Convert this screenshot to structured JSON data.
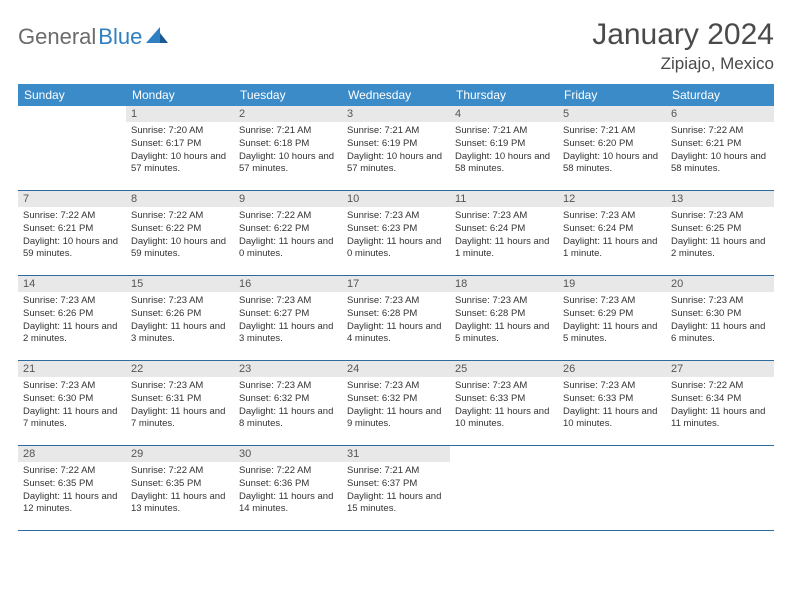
{
  "brand": {
    "general": "General",
    "blue": "Blue"
  },
  "title": "January 2024",
  "location": "Zipiajo, Mexico",
  "colors": {
    "header_bg": "#3b8bc9",
    "header_text": "#ffffff",
    "daynum_bg": "#e8e8e8",
    "week_border": "#2f6a9e",
    "title_color": "#4a4a4a",
    "logo_gray": "#6b6b6b",
    "logo_blue": "#2f7fc2"
  },
  "weekdays": [
    "Sunday",
    "Monday",
    "Tuesday",
    "Wednesday",
    "Thursday",
    "Friday",
    "Saturday"
  ],
  "weeks": [
    [
      {
        "day": "",
        "sunrise": "",
        "sunset": "",
        "daylight": ""
      },
      {
        "day": "1",
        "sunrise": "Sunrise: 7:20 AM",
        "sunset": "Sunset: 6:17 PM",
        "daylight": "Daylight: 10 hours and 57 minutes."
      },
      {
        "day": "2",
        "sunrise": "Sunrise: 7:21 AM",
        "sunset": "Sunset: 6:18 PM",
        "daylight": "Daylight: 10 hours and 57 minutes."
      },
      {
        "day": "3",
        "sunrise": "Sunrise: 7:21 AM",
        "sunset": "Sunset: 6:19 PM",
        "daylight": "Daylight: 10 hours and 57 minutes."
      },
      {
        "day": "4",
        "sunrise": "Sunrise: 7:21 AM",
        "sunset": "Sunset: 6:19 PM",
        "daylight": "Daylight: 10 hours and 58 minutes."
      },
      {
        "day": "5",
        "sunrise": "Sunrise: 7:21 AM",
        "sunset": "Sunset: 6:20 PM",
        "daylight": "Daylight: 10 hours and 58 minutes."
      },
      {
        "day": "6",
        "sunrise": "Sunrise: 7:22 AM",
        "sunset": "Sunset: 6:21 PM",
        "daylight": "Daylight: 10 hours and 58 minutes."
      }
    ],
    [
      {
        "day": "7",
        "sunrise": "Sunrise: 7:22 AM",
        "sunset": "Sunset: 6:21 PM",
        "daylight": "Daylight: 10 hours and 59 minutes."
      },
      {
        "day": "8",
        "sunrise": "Sunrise: 7:22 AM",
        "sunset": "Sunset: 6:22 PM",
        "daylight": "Daylight: 10 hours and 59 minutes."
      },
      {
        "day": "9",
        "sunrise": "Sunrise: 7:22 AM",
        "sunset": "Sunset: 6:22 PM",
        "daylight": "Daylight: 11 hours and 0 minutes."
      },
      {
        "day": "10",
        "sunrise": "Sunrise: 7:23 AM",
        "sunset": "Sunset: 6:23 PM",
        "daylight": "Daylight: 11 hours and 0 minutes."
      },
      {
        "day": "11",
        "sunrise": "Sunrise: 7:23 AM",
        "sunset": "Sunset: 6:24 PM",
        "daylight": "Daylight: 11 hours and 1 minute."
      },
      {
        "day": "12",
        "sunrise": "Sunrise: 7:23 AM",
        "sunset": "Sunset: 6:24 PM",
        "daylight": "Daylight: 11 hours and 1 minute."
      },
      {
        "day": "13",
        "sunrise": "Sunrise: 7:23 AM",
        "sunset": "Sunset: 6:25 PM",
        "daylight": "Daylight: 11 hours and 2 minutes."
      }
    ],
    [
      {
        "day": "14",
        "sunrise": "Sunrise: 7:23 AM",
        "sunset": "Sunset: 6:26 PM",
        "daylight": "Daylight: 11 hours and 2 minutes."
      },
      {
        "day": "15",
        "sunrise": "Sunrise: 7:23 AM",
        "sunset": "Sunset: 6:26 PM",
        "daylight": "Daylight: 11 hours and 3 minutes."
      },
      {
        "day": "16",
        "sunrise": "Sunrise: 7:23 AM",
        "sunset": "Sunset: 6:27 PM",
        "daylight": "Daylight: 11 hours and 3 minutes."
      },
      {
        "day": "17",
        "sunrise": "Sunrise: 7:23 AM",
        "sunset": "Sunset: 6:28 PM",
        "daylight": "Daylight: 11 hours and 4 minutes."
      },
      {
        "day": "18",
        "sunrise": "Sunrise: 7:23 AM",
        "sunset": "Sunset: 6:28 PM",
        "daylight": "Daylight: 11 hours and 5 minutes."
      },
      {
        "day": "19",
        "sunrise": "Sunrise: 7:23 AM",
        "sunset": "Sunset: 6:29 PM",
        "daylight": "Daylight: 11 hours and 5 minutes."
      },
      {
        "day": "20",
        "sunrise": "Sunrise: 7:23 AM",
        "sunset": "Sunset: 6:30 PM",
        "daylight": "Daylight: 11 hours and 6 minutes."
      }
    ],
    [
      {
        "day": "21",
        "sunrise": "Sunrise: 7:23 AM",
        "sunset": "Sunset: 6:30 PM",
        "daylight": "Daylight: 11 hours and 7 minutes."
      },
      {
        "day": "22",
        "sunrise": "Sunrise: 7:23 AM",
        "sunset": "Sunset: 6:31 PM",
        "daylight": "Daylight: 11 hours and 7 minutes."
      },
      {
        "day": "23",
        "sunrise": "Sunrise: 7:23 AM",
        "sunset": "Sunset: 6:32 PM",
        "daylight": "Daylight: 11 hours and 8 minutes."
      },
      {
        "day": "24",
        "sunrise": "Sunrise: 7:23 AM",
        "sunset": "Sunset: 6:32 PM",
        "daylight": "Daylight: 11 hours and 9 minutes."
      },
      {
        "day": "25",
        "sunrise": "Sunrise: 7:23 AM",
        "sunset": "Sunset: 6:33 PM",
        "daylight": "Daylight: 11 hours and 10 minutes."
      },
      {
        "day": "26",
        "sunrise": "Sunrise: 7:23 AM",
        "sunset": "Sunset: 6:33 PM",
        "daylight": "Daylight: 11 hours and 10 minutes."
      },
      {
        "day": "27",
        "sunrise": "Sunrise: 7:22 AM",
        "sunset": "Sunset: 6:34 PM",
        "daylight": "Daylight: 11 hours and 11 minutes."
      }
    ],
    [
      {
        "day": "28",
        "sunrise": "Sunrise: 7:22 AM",
        "sunset": "Sunset: 6:35 PM",
        "daylight": "Daylight: 11 hours and 12 minutes."
      },
      {
        "day": "29",
        "sunrise": "Sunrise: 7:22 AM",
        "sunset": "Sunset: 6:35 PM",
        "daylight": "Daylight: 11 hours and 13 minutes."
      },
      {
        "day": "30",
        "sunrise": "Sunrise: 7:22 AM",
        "sunset": "Sunset: 6:36 PM",
        "daylight": "Daylight: 11 hours and 14 minutes."
      },
      {
        "day": "31",
        "sunrise": "Sunrise: 7:21 AM",
        "sunset": "Sunset: 6:37 PM",
        "daylight": "Daylight: 11 hours and 15 minutes."
      },
      {
        "day": "",
        "sunrise": "",
        "sunset": "",
        "daylight": ""
      },
      {
        "day": "",
        "sunrise": "",
        "sunset": "",
        "daylight": ""
      },
      {
        "day": "",
        "sunrise": "",
        "sunset": "",
        "daylight": ""
      }
    ]
  ]
}
